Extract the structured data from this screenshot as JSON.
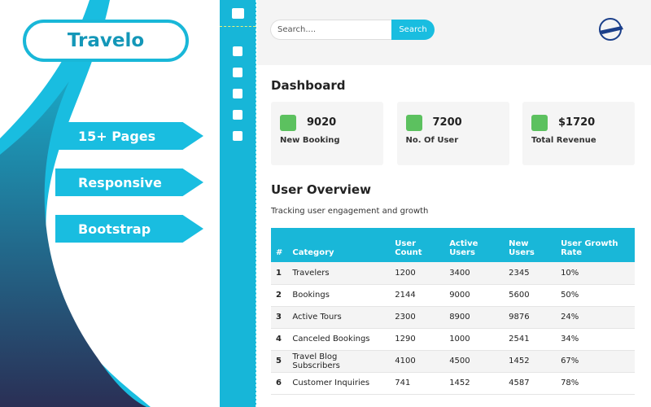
{
  "brand": {
    "title": "Travelo"
  },
  "features": [
    "15+ Pages",
    "Responsive",
    "Bootstrap"
  ],
  "search": {
    "placeholder": "Search....",
    "button": "Search"
  },
  "dashboard": {
    "title": "Dashboard",
    "cards": [
      {
        "value": "9020",
        "label": "New Booking"
      },
      {
        "value": "7200",
        "label": "No. Of User"
      },
      {
        "value": "$1720",
        "label": "Total Revenue"
      }
    ]
  },
  "overview": {
    "title": "User Overview",
    "subtitle": "Tracking user engagement and growth",
    "table": {
      "columns": [
        "#",
        "Category",
        "User Count",
        "Active Users",
        "New Users",
        "User Growth Rate"
      ],
      "rows": [
        [
          "1",
          "Travelers",
          "1200",
          "3400",
          "2345",
          "10%"
        ],
        [
          "2",
          "Bookings",
          "2144",
          "9000",
          "5600",
          "50%"
        ],
        [
          "3",
          "Active Tours",
          "2300",
          "8900",
          "9876",
          "24%"
        ],
        [
          "4",
          "Canceled Bookings",
          "1290",
          "1000",
          "2541",
          "34%"
        ],
        [
          "5",
          "Travel Blog Subscribers",
          "4100",
          "4500",
          "1452",
          "67%"
        ],
        [
          "6",
          "Customer Inquiries",
          "741",
          "1452",
          "4587",
          "78%"
        ]
      ]
    }
  }
}
